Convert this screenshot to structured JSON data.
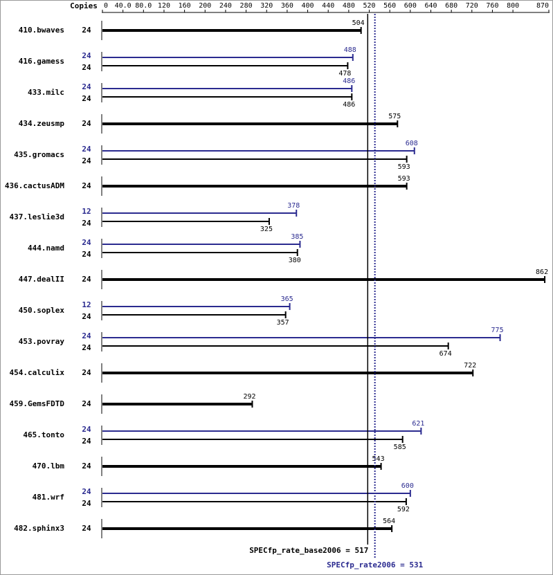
{
  "chart_data": {
    "type": "spec_bar",
    "copies_label": "Copies",
    "categories": [
      "410.bwaves",
      "416.gamess",
      "433.milc",
      "434.zeusmp",
      "435.gromacs",
      "436.cactusADM",
      "437.leslie3d",
      "444.namd",
      "447.dealII",
      "450.soplex",
      "453.povray",
      "454.calculix",
      "459.GemsFDTD",
      "465.tonto",
      "470.lbm",
      "481.wrf",
      "482.sphinx3"
    ],
    "series": [
      {
        "color": "#000000",
        "copies": [
          24,
          24,
          24,
          24,
          24,
          24,
          24,
          24,
          24,
          24,
          24,
          24,
          24,
          24,
          24,
          24,
          24
        ],
        "values": [
          504,
          478,
          486,
          575,
          593,
          593,
          325,
          380,
          862,
          357,
          674,
          722,
          292,
          585,
          543,
          592,
          564
        ]
      },
      {
        "color": "#2a2a8f",
        "copies": [
          null,
          24,
          24,
          null,
          24,
          null,
          12,
          24,
          null,
          12,
          24,
          null,
          null,
          24,
          null,
          24,
          null
        ],
        "values": [
          null,
          488,
          486,
          null,
          608,
          null,
          378,
          385,
          null,
          365,
          775,
          null,
          null,
          621,
          null,
          600,
          null
        ]
      }
    ],
    "xlim": [
      0,
      870
    ],
    "xticks": [
      0,
      {
        "value": 40,
        "label": "40.0"
      },
      {
        "value": 80,
        "label": "80.0"
      },
      120,
      160,
      200,
      240,
      280,
      320,
      360,
      400,
      440,
      480,
      520,
      560,
      600,
      640,
      680,
      720,
      760,
      800,
      870
    ],
    "reference_lines": [
      {
        "label": "SPECfp_rate_base2006 = 517",
        "value": 517,
        "color": "#000000",
        "dashed": false
      },
      {
        "label": "SPECfp_rate2006 = 531",
        "value": 531,
        "color": "#2a2a8f",
        "dashed": true
      }
    ]
  }
}
